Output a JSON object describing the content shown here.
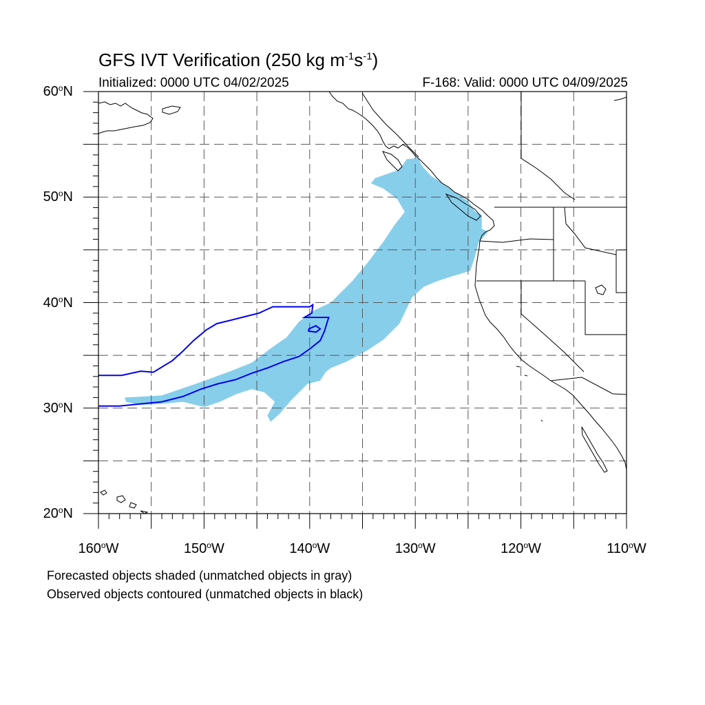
{
  "title": {
    "prefix": "GFS IVT Verification (250 kg m",
    "sup1": "-1",
    "mid": "s",
    "sup2": "-1",
    "suffix": ")"
  },
  "subtitle_left": "Initialized: 0000 UTC 04/02/2025",
  "subtitle_right": "F-168: Valid: 0000 UTC 04/09/2025",
  "map": {
    "lon_range": [
      -160,
      -110
    ],
    "lat_range": [
      20,
      60
    ],
    "grid_lon": [
      -155,
      -150,
      -145,
      -140,
      -135,
      -130,
      -125,
      -120,
      -115
    ],
    "grid_lat": [
      25,
      30,
      35,
      40,
      45,
      50,
      55
    ],
    "lat_labels": [
      {
        "value": 60,
        "num": "60",
        "dir": "N"
      },
      {
        "value": 50,
        "num": "50",
        "dir": "N"
      },
      {
        "value": 40,
        "num": "40",
        "dir": "N"
      },
      {
        "value": 30,
        "num": "30",
        "dir": "N"
      },
      {
        "value": 20,
        "num": "20",
        "dir": "N"
      }
    ],
    "lon_labels": [
      {
        "value": -160,
        "num": "160",
        "dir": "W"
      },
      {
        "value": -150,
        "num": "150",
        "dir": "W"
      },
      {
        "value": -140,
        "num": "140",
        "dir": "W"
      },
      {
        "value": -130,
        "num": "130",
        "dir": "W"
      },
      {
        "value": -120,
        "num": "120",
        "dir": "W"
      },
      {
        "value": -110,
        "num": "110",
        "dir": "W"
      }
    ],
    "colors": {
      "forecast_fill": "#87ceeb",
      "observed_contour": "#0000ee",
      "coastline": "#000000",
      "grid": "#555555"
    },
    "forecast_object": [
      [
        -157.5,
        31.0
      ],
      [
        -154.0,
        31.2
      ],
      [
        -150.5,
        32.4
      ],
      [
        -147.5,
        33.5
      ],
      [
        -145.5,
        34.3
      ],
      [
        -143.5,
        35.8
      ],
      [
        -142.2,
        36.7
      ],
      [
        -141.0,
        38.2
      ],
      [
        -139.5,
        39.3
      ],
      [
        -138.0,
        40.0
      ],
      [
        -136.0,
        42.0
      ],
      [
        -134.5,
        43.8
      ],
      [
        -133.0,
        45.8
      ],
      [
        -132.0,
        47.3
      ],
      [
        -131.0,
        48.6
      ],
      [
        -131.7,
        49.8
      ],
      [
        -133.0,
        50.8
      ],
      [
        -134.2,
        51.3
      ],
      [
        -133.8,
        51.8
      ],
      [
        -131.5,
        52.6
      ],
      [
        -130.8,
        53.6
      ],
      [
        -129.7,
        53.7
      ],
      [
        -129.4,
        53.0
      ],
      [
        -128.5,
        52.0
      ],
      [
        -127.7,
        51.5
      ],
      [
        -127.0,
        51.0
      ],
      [
        -126.0,
        50.3
      ],
      [
        -125.0,
        49.6
      ],
      [
        -124.3,
        48.6
      ],
      [
        -123.7,
        48.3
      ],
      [
        -123.7,
        47.0
      ],
      [
        -123.1,
        46.7
      ],
      [
        -124.0,
        45.7
      ],
      [
        -124.4,
        44.2
      ],
      [
        -124.8,
        43.0
      ],
      [
        -126.5,
        42.5
      ],
      [
        -128.0,
        42.0
      ],
      [
        -129.2,
        41.5
      ],
      [
        -130.3,
        40.5
      ],
      [
        -131.5,
        38.0
      ],
      [
        -133.0,
        36.5
      ],
      [
        -134.5,
        35.5
      ],
      [
        -136.5,
        34.4
      ],
      [
        -138.0,
        33.8
      ],
      [
        -138.5,
        33.4
      ],
      [
        -139.0,
        32.6
      ],
      [
        -140.2,
        32.3
      ],
      [
        -141.0,
        31.5
      ],
      [
        -141.7,
        30.8
      ],
      [
        -142.8,
        29.5
      ],
      [
        -143.7,
        28.7
      ],
      [
        -144.0,
        29.3
      ],
      [
        -143.3,
        30.6
      ],
      [
        -144.3,
        31.5
      ],
      [
        -145.5,
        31.8
      ],
      [
        -147.0,
        31.3
      ],
      [
        -148.5,
        30.6
      ],
      [
        -150.0,
        30.1
      ],
      [
        -152.0,
        30.6
      ],
      [
        -154.0,
        30.4
      ],
      [
        -156.0,
        30.3
      ],
      [
        -157.4,
        30.6
      ]
    ],
    "observed_objects": [
      [
        [
          -160.0,
          33.1
        ],
        [
          -157.8,
          33.1
        ],
        [
          -156.0,
          33.5
        ],
        [
          -154.8,
          33.4
        ],
        [
          -153.0,
          34.5
        ],
        [
          -152.0,
          35.4
        ],
        [
          -151.0,
          36.4
        ],
        [
          -149.8,
          37.4
        ],
        [
          -148.8,
          38.0
        ],
        [
          -147.6,
          38.3
        ],
        [
          -146.0,
          38.7
        ],
        [
          -144.8,
          39.0
        ],
        [
          -143.5,
          39.6
        ],
        [
          -142.0,
          39.6
        ],
        [
          -140.0,
          39.6
        ],
        [
          -139.7,
          39.8
        ],
        [
          -139.8,
          39.0
        ],
        [
          -140.5,
          38.6
        ],
        [
          -139.0,
          38.6
        ],
        [
          -138.2,
          38.6
        ],
        [
          -138.6,
          37.3
        ],
        [
          -139.0,
          36.4
        ],
        [
          -140.0,
          35.6
        ],
        [
          -141.0,
          34.9
        ],
        [
          -142.5,
          34.4
        ],
        [
          -144.0,
          33.8
        ],
        [
          -145.5,
          33.3
        ],
        [
          -147.0,
          32.7
        ],
        [
          -148.7,
          32.3
        ],
        [
          -150.3,
          31.8
        ],
        [
          -152.0,
          31.1
        ],
        [
          -154.0,
          30.6
        ],
        [
          -156.0,
          30.4
        ],
        [
          -158.0,
          30.2
        ],
        [
          -160.0,
          30.2
        ]
      ],
      [
        [
          -140.1,
          37.5
        ],
        [
          -139.4,
          37.8
        ],
        [
          -139.0,
          37.5
        ],
        [
          -139.4,
          37.2
        ],
        [
          -140.1,
          37.3
        ],
        [
          -140.1,
          37.5
        ]
      ]
    ]
  },
  "captions": [
    "Forecasted objects shaded (unmatched objects in gray)",
    "Observed objects contoured (unmatched objects in black)"
  ]
}
